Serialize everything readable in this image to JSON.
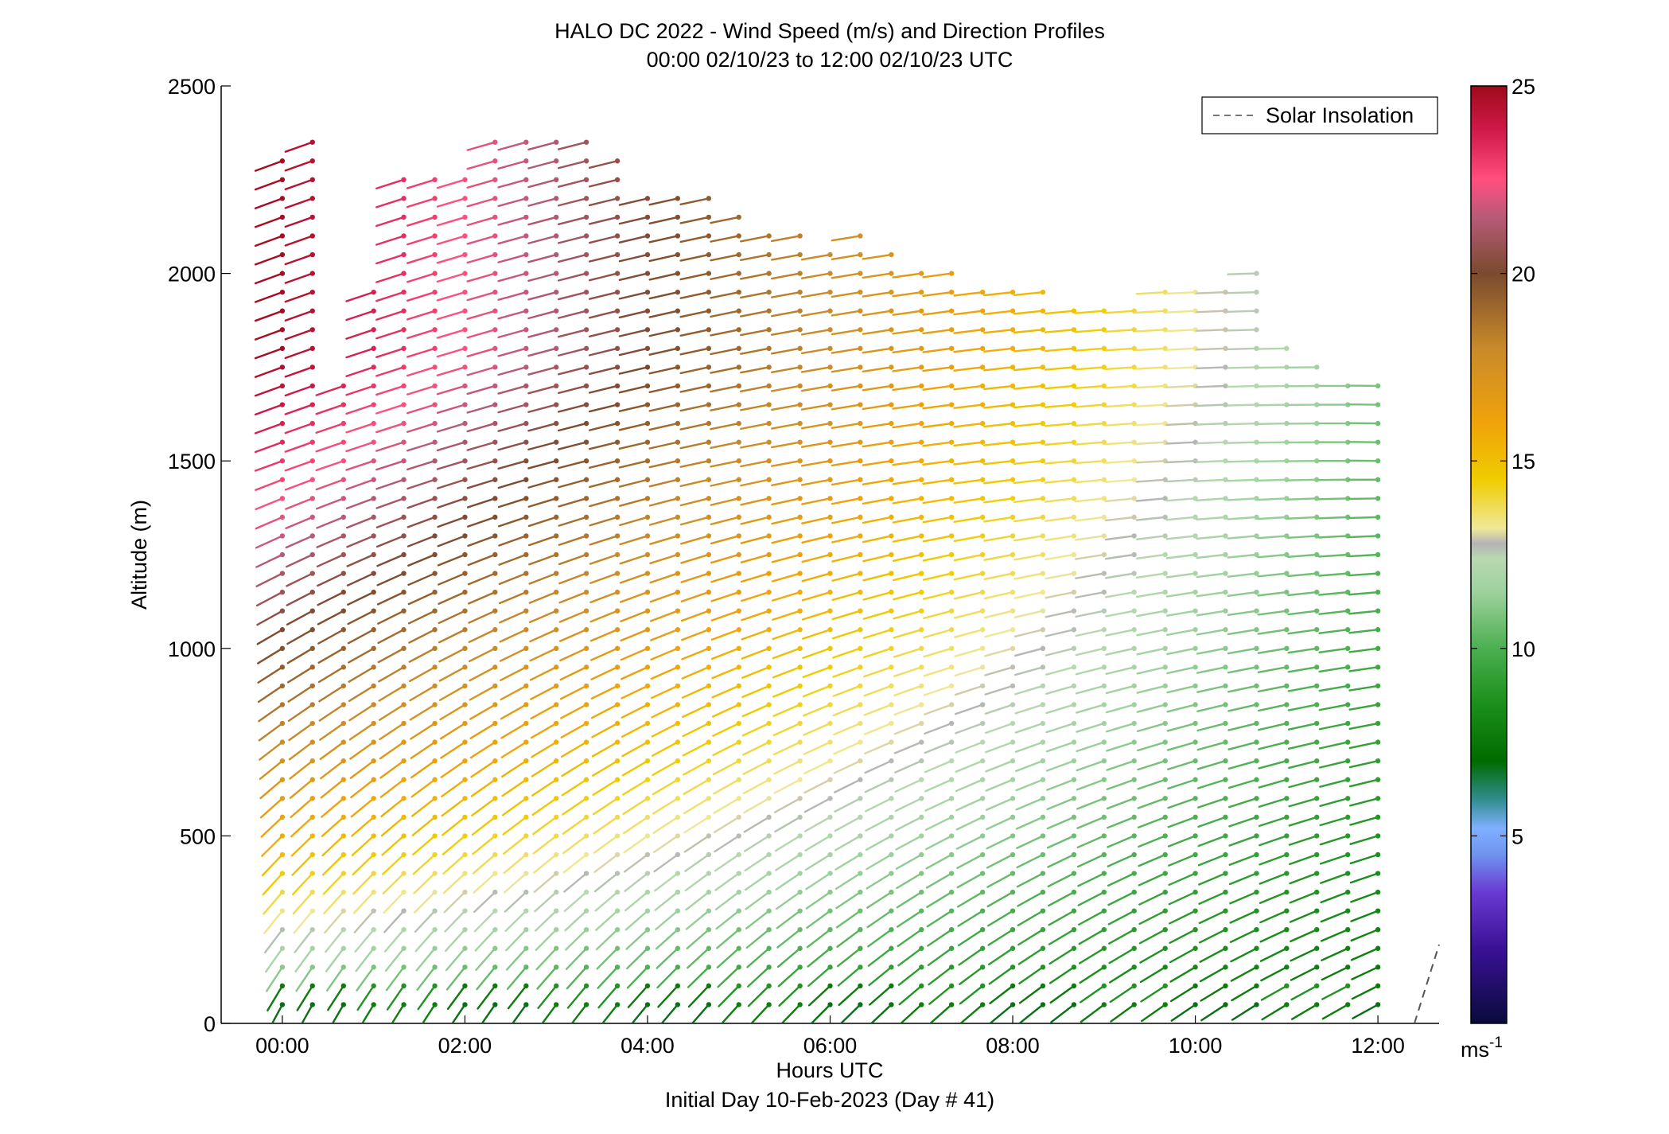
{
  "chart_data": {
    "type": "wind-barb-profile",
    "title": "HALO DC 2022 - Wind Speed (m/s) and Direction Profiles",
    "subtitle": "00:00 02/10/23 to 12:00 02/10/23  UTC",
    "xlabel": "Hours UTC",
    "xlabel2": "Initial Day 10-Feb-2023 (Day # 41)",
    "ylabel": "Altitude (m)",
    "xlim_hours": [
      -0.67,
      12.67
    ],
    "ylim": [
      0,
      2500
    ],
    "x_ticks": [
      {
        "value": 0,
        "label": "00:00"
      },
      {
        "value": 2,
        "label": "02:00"
      },
      {
        "value": 4,
        "label": "04:00"
      },
      {
        "value": 6,
        "label": "06:00"
      },
      {
        "value": 8,
        "label": "08:00"
      },
      {
        "value": 10,
        "label": "10:00"
      },
      {
        "value": 12,
        "label": "12:00"
      }
    ],
    "y_ticks": [
      {
        "value": 0,
        "label": "0"
      },
      {
        "value": 500,
        "label": "500"
      },
      {
        "value": 1000,
        "label": "1000"
      },
      {
        "value": 1500,
        "label": "1500"
      },
      {
        "value": 2000,
        "label": "2000"
      },
      {
        "value": 2500,
        "label": "2500"
      }
    ],
    "legend": {
      "entries": [
        "Solar Insolation"
      ],
      "placement": "top-right",
      "style": "dashed-gray"
    },
    "solar_insolation": {
      "x": [
        12.4,
        12.67
      ],
      "y": [
        0,
        210
      ]
    },
    "colorbar": {
      "min": 0,
      "max": 25,
      "ticks": [
        {
          "value": 5,
          "label": "5"
        },
        {
          "value": 10,
          "label": "10"
        },
        {
          "value": 15,
          "label": "15"
        },
        {
          "value": 20,
          "label": "20"
        },
        {
          "value": 25,
          "label": "25"
        }
      ],
      "unit_label": "ms",
      "unit_superscript": "-1",
      "stops": [
        {
          "v": 0,
          "c": "#0a0a3c"
        },
        {
          "v": 2,
          "c": "#3a1196"
        },
        {
          "v": 3.5,
          "c": "#6a3ad2"
        },
        {
          "v": 4.5,
          "c": "#6f93f0"
        },
        {
          "v": 5.2,
          "c": "#7fb0ff"
        },
        {
          "v": 6,
          "c": "#2e8c8a"
        },
        {
          "v": 7,
          "c": "#006b00"
        },
        {
          "v": 8.5,
          "c": "#1a8f1a"
        },
        {
          "v": 10,
          "c": "#4caf50"
        },
        {
          "v": 11.5,
          "c": "#9ed19e"
        },
        {
          "v": 12.4,
          "c": "#b8d8b0"
        },
        {
          "v": 12.8,
          "c": "#b4b4b4"
        },
        {
          "v": 13.2,
          "c": "#f0e89a"
        },
        {
          "v": 14.5,
          "c": "#f0cc00"
        },
        {
          "v": 16,
          "c": "#f0a30a"
        },
        {
          "v": 18,
          "c": "#c88a2a"
        },
        {
          "v": 20,
          "c": "#7a4a2e"
        },
        {
          "v": 21.5,
          "c": "#b85a78"
        },
        {
          "v": 22.5,
          "c": "#ff4f7f"
        },
        {
          "v": 23.8,
          "c": "#d01a4a"
        },
        {
          "v": 25,
          "c": "#9e0a1a"
        }
      ]
    },
    "profile_times_hours": [
      0.0,
      0.33,
      0.67,
      1.0,
      1.33,
      1.67,
      2.0,
      2.33,
      2.67,
      3.0,
      3.33,
      3.67,
      4.0,
      4.33,
      4.67,
      5.0,
      5.33,
      5.67,
      6.0,
      6.33,
      6.67,
      7.0,
      7.33,
      7.67,
      8.0,
      8.33,
      8.67,
      9.0,
      9.33,
      9.67,
      10.0,
      10.33,
      10.67,
      11.0,
      11.33,
      11.67,
      12.0
    ],
    "profile_top_m": [
      2320,
      2370,
      1740,
      1950,
      2290,
      2280,
      2260,
      2370,
      2370,
      2370,
      2360,
      2310,
      2240,
      2240,
      2200,
      2190,
      2130,
      2130,
      2090,
      2130,
      2060,
      2030,
      2000,
      1990,
      1980,
      1960,
      1940,
      1920,
      1900,
      1950,
      1960,
      1970,
      2000,
      1830,
      1780,
      1710,
      1740
    ],
    "barb_vertical_spacing_m": 50,
    "speed_model_m_s": {
      "surface": [
        6.5,
        8.5
      ],
      "description": "wind speed (m/s) increases with altitude; strongest (red, ~24-25 m/s) aloft before 02:00, decreasing to ~10-14 m/s near 12:00; lowest ~4-6 m/s near surface"
    }
  }
}
